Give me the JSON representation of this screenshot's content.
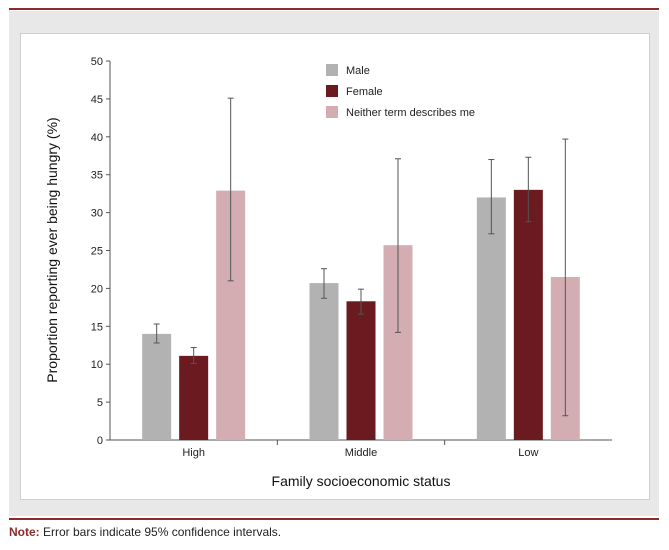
{
  "note": {
    "label": "Note:",
    "text": " Error bars indicate 95% confidence intervals."
  },
  "chart_data": {
    "type": "bar",
    "title": "",
    "xlabel": "Family socioeconomic status",
    "ylabel": "Proportion reporting ever being hungry (%)",
    "ylim": [
      0,
      50
    ],
    "yticks": [
      0,
      5,
      10,
      15,
      20,
      25,
      30,
      35,
      40,
      45,
      50
    ],
    "categories": [
      "High",
      "Middle",
      "Low"
    ],
    "legend_position": "top-center",
    "grid": false,
    "series": [
      {
        "name": "Male",
        "color": "#b2b2b2",
        "values": [
          14.0,
          20.7,
          32.0
        ],
        "ci_low": [
          12.8,
          18.7,
          27.2
        ],
        "ci_high": [
          15.3,
          22.6,
          37.0
        ]
      },
      {
        "name": "Female",
        "color": "#6b1a20",
        "values": [
          11.1,
          18.3,
          33.0
        ],
        "ci_low": [
          10.1,
          16.6,
          28.8
        ],
        "ci_high": [
          12.2,
          19.9,
          37.3
        ]
      },
      {
        "name": "Neither term describes me",
        "color": "#d4adb2",
        "values": [
          32.9,
          25.7,
          21.5
        ],
        "ci_low": [
          21.0,
          14.2,
          3.2
        ],
        "ci_high": [
          45.1,
          37.1,
          39.7
        ]
      }
    ]
  }
}
